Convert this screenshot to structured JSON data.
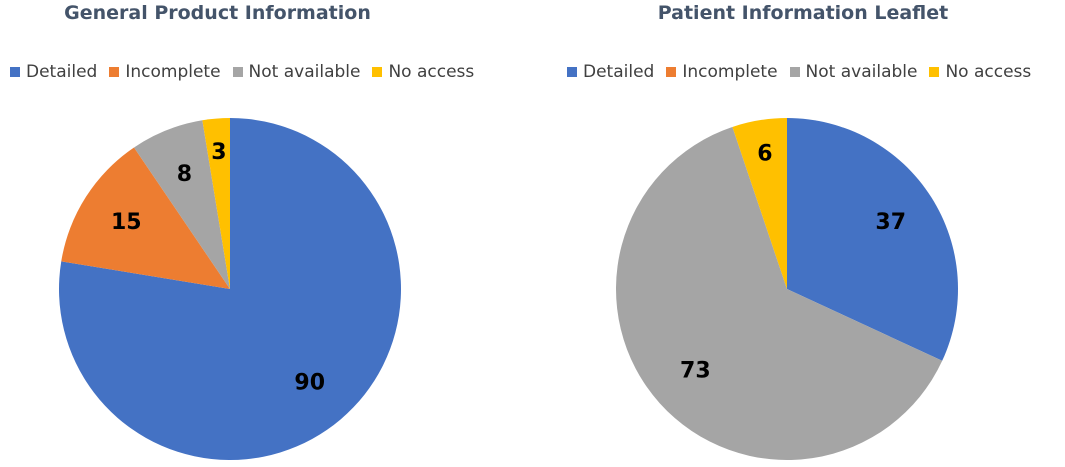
{
  "chart_data": [
    {
      "type": "pie",
      "title": "General Product Information",
      "categories": [
        "Detailed",
        "Incomplete",
        "Not available",
        "No access"
      ],
      "values": [
        90,
        15,
        8,
        3
      ],
      "colors": [
        "#4472c4",
        "#ed7d31",
        "#a5a5a5",
        "#ffc000"
      ],
      "legend_position": "top"
    },
    {
      "type": "pie",
      "title": "Patient Information Leaflet",
      "categories": [
        "Detailed",
        "Incomplete",
        "Not available",
        "No access"
      ],
      "values": [
        37,
        0,
        73,
        6
      ],
      "colors": [
        "#4472c4",
        "#ed7d31",
        "#a5a5a5",
        "#ffc000"
      ],
      "legend_position": "top"
    }
  ]
}
